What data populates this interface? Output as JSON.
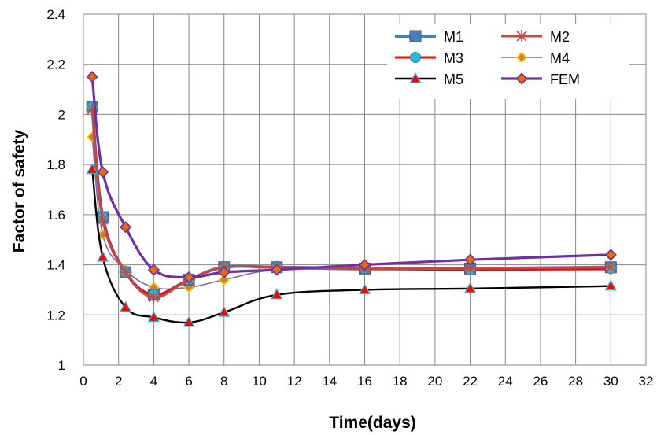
{
  "chart_data": {
    "type": "line",
    "title": "",
    "xlabel": "Time(days)",
    "ylabel": "Factor of safety",
    "xlim": [
      0,
      32
    ],
    "ylim": [
      1,
      2.4
    ],
    "xticks": [
      0,
      2,
      4,
      6,
      8,
      10,
      12,
      14,
      16,
      18,
      20,
      22,
      24,
      26,
      28,
      30,
      32
    ],
    "yticks": [
      1,
      1.2,
      1.4,
      1.6,
      1.8,
      2,
      2.2,
      2.4
    ],
    "ytick_labels": [
      "1",
      "1.2",
      "1.4",
      "1.6",
      "1.8",
      "2",
      "2.2",
      "2.4"
    ],
    "grid": true,
    "legend_position": "top-right",
    "x": [
      0.5,
      1.1,
      2.4,
      4,
      6,
      8,
      11,
      16,
      22,
      30
    ],
    "series": [
      {
        "name": "M1",
        "color": "#4a7ebb",
        "marker": "square",
        "values": [
          2.03,
          1.59,
          1.37,
          1.28,
          1.34,
          1.39,
          1.39,
          1.385,
          1.385,
          1.39
        ]
      },
      {
        "name": "M2",
        "color": "#be4b48",
        "marker": "star",
        "values": [
          2.02,
          1.58,
          1.37,
          1.27,
          1.34,
          1.39,
          1.39,
          1.385,
          1.385,
          1.39
        ]
      },
      {
        "name": "M3",
        "color": "#ff0000",
        "marker": "circle",
        "values": [
          2.03,
          1.59,
          1.37,
          1.28,
          1.34,
          1.39,
          1.39,
          1.385,
          1.38,
          1.385
        ]
      },
      {
        "name": "M4",
        "color": "#7b68b0",
        "marker": "diamond",
        "values": [
          1.91,
          1.52,
          1.38,
          1.31,
          1.31,
          1.34,
          1.38,
          1.38,
          1.38,
          1.38
        ]
      },
      {
        "name": "M5",
        "color": "#000000",
        "marker": "triangle",
        "values": [
          1.78,
          1.43,
          1.23,
          1.19,
          1.17,
          1.21,
          1.28,
          1.3,
          1.305,
          1.315
        ]
      },
      {
        "name": "FEM",
        "color": "#7030a0",
        "marker": "diamond-large",
        "values": [
          2.15,
          1.77,
          1.55,
          1.38,
          1.35,
          1.37,
          1.38,
          1.4,
          1.42,
          1.44
        ]
      }
    ]
  }
}
